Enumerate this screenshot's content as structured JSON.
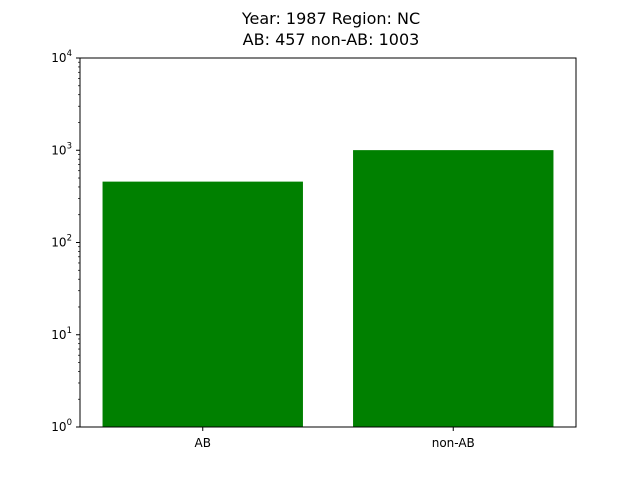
{
  "chart_data": {
    "type": "bar",
    "title_lines": [
      "Year: 1987 Region: NC",
      "AB: 457 non-AB: 1003"
    ],
    "categories": [
      "AB",
      "non-AB"
    ],
    "values": [
      457,
      1003
    ],
    "bar_color": "#008000",
    "yscale": "log",
    "ylim": [
      1,
      10000
    ],
    "y_ticks": [
      {
        "value": 1,
        "base": "10",
        "exp": "0"
      },
      {
        "value": 10,
        "base": "10",
        "exp": "1"
      },
      {
        "value": 100,
        "base": "10",
        "exp": "2"
      },
      {
        "value": 1000,
        "base": "10",
        "exp": "3"
      },
      {
        "value": 10000,
        "base": "10",
        "exp": "4"
      }
    ],
    "xlabel": "",
    "ylabel": "",
    "grid": false,
    "legend": "none"
  }
}
